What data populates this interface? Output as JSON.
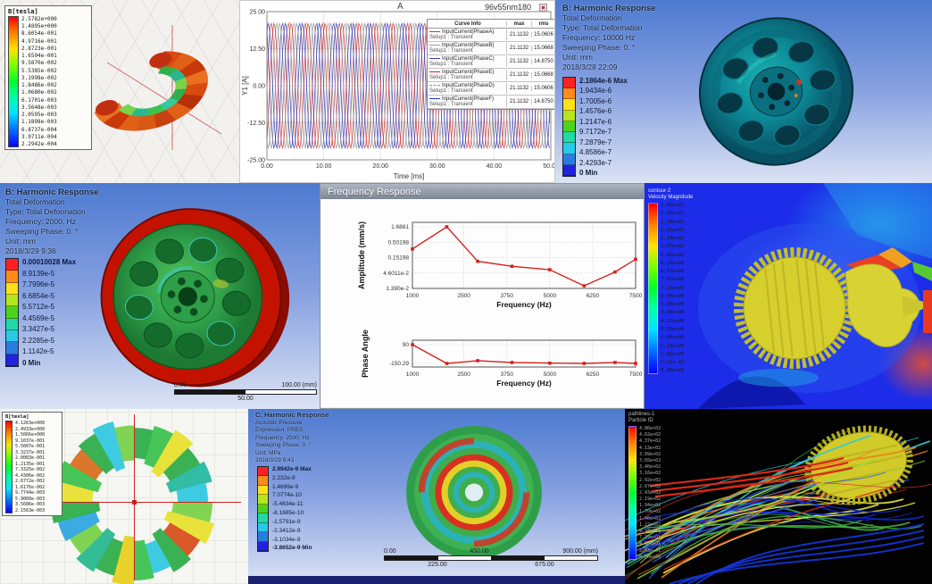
{
  "colors": {
    "ansys_bands": [
      "#ff2121",
      "#ff8c1a",
      "#ffe01a",
      "#b5e61d",
      "#4cd41c",
      "#21d8a6",
      "#29c9e8",
      "#2a7de0",
      "#2222dd"
    ],
    "accent_red": "#d42020",
    "ansys_bg_top": "#4d7ad0",
    "fluent_bg": "#1c2ce8"
  },
  "panels": {
    "maxwell_field_top": {
      "legend_title": "B[tesla]",
      "legend_values": [
        "2.5782e+000",
        "1.4895e+000",
        "8.6054e-001",
        "4.9716e-001",
        "2.8723e-001",
        "1.6594e-001",
        "9.5870e-002",
        "5.5385e-002",
        "3.1998e-002",
        "1.8486e-002",
        "1.0680e-002",
        "6.1701e-003",
        "3.5648e-003",
        "2.0595e-003",
        "1.1898e-003",
        "6.8737e-004",
        "3.9711e-004",
        "2.2942e-004"
      ]
    },
    "current_plot": {
      "corner_label": "A",
      "title": "96v55nm180"
    },
    "harmonic_10000": {
      "header": "B: Harmonic Response",
      "lines": [
        "Total Deformation",
        "Type: Total Deformation",
        "Frequency: 10000 Hz",
        "Sweeping Phase: 0. °",
        "Unit: mm",
        "2018/3/28 22:09"
      ],
      "scale_labels": [
        "2.1864e-6 Max",
        "1.9434e-6",
        "1.7005e-6",
        "1.4576e-6",
        "1.2147e-6",
        "9.7172e-7",
        "7.2879e-7",
        "4.8586e-7",
        "2.4293e-7",
        "0 Min"
      ]
    },
    "harmonic_2000": {
      "header": "B: Harmonic Response",
      "lines": [
        "Total Deformation",
        "Type: Total Deformation",
        "Frequency: 2000. Hz",
        "Sweeping Phase: 0. °",
        "Unit: mm",
        "2018/3/29 9:36"
      ],
      "scale_labels": [
        "0.00010028 Max",
        "8.9139e-5",
        "7.7996e-5",
        "6.6854e-5",
        "5.5712e-5",
        "4.4569e-5",
        "3.3427e-5",
        "2.2285e-5",
        "1.1142e-5",
        "0 Min"
      ],
      "ruler": {
        "top": [
          "0.00",
          "100.00 (mm)"
        ],
        "bottom": [
          "50.00"
        ],
        "segments": 2
      }
    },
    "freq_response": {
      "window_title": "Frequency Response"
    },
    "cfd_contour": {
      "legend_title_lines": [
        "contour-2",
        "Velocity Magnitude"
      ],
      "legend_values": [
        "1.42e+01",
        "1.35e+01",
        "1.28e+01",
        "1.21e+01",
        "1.14e+01",
        "1.07e+01",
        "9.96e+00",
        "9.24e+00",
        "8.53e+00",
        "7.82e+00",
        "7.11e+00",
        "6.40e+00",
        "5.69e+00",
        "4.98e+00",
        "4.27e+00",
        "3.56e+00",
        "2.84e+00",
        "2.13e+00",
        "1.42e+00",
        "7.11e-01",
        "0.00e+00"
      ]
    },
    "maxwell_field_bottom": {
      "legend_title": "B[tesla]",
      "legend_values": [
        "4.1263e+000",
        "2.4933e+000",
        "1.5066e+000",
        "9.1037e-001",
        "5.5007e-001",
        "3.3237e-001",
        "2.0083e-001",
        "1.2135e-001",
        "7.3325e-002",
        "4.4306e-002",
        "2.6772e-002",
        "1.6176e-002",
        "9.7744e-003",
        "5.9060e-003",
        "3.5686e-003",
        "2.1563e-003"
      ]
    },
    "acoustic": {
      "header": "C: Harmonic Response",
      "lines": [
        "Acoustic Pressure",
        "Expression: PRES",
        "Frequency: 2000. Hz",
        "Sweeping Phase: 0. °",
        "Unit: MPa",
        "2018/3/29 9:43"
      ],
      "scale_labels": [
        "2.9942e-9 Max",
        "2.232e-9",
        "1.4699e-9",
        "7.0774e-10",
        "-5.4634e-11",
        "-8.1685e-10",
        "-1.5791e-9",
        "-2.3412e-9",
        "-3.1034e-9",
        "-3.8652e-9 Min"
      ],
      "ruler": {
        "top": [
          "0.00",
          "450.00",
          "900.00 (mm)"
        ],
        "bottom": [
          "225.00",
          "675.00"
        ],
        "segments": 4
      }
    },
    "streamlines": {
      "legend_title_lines": [
        "pathlines-1",
        "Particle ID"
      ],
      "legend_values": [
        "4.86e+02",
        "4.62e+02",
        "4.37e+02",
        "4.13e+02",
        "3.89e+02",
        "3.65e+02",
        "3.40e+02",
        "3.16e+02",
        "2.92e+02",
        "2.67e+02",
        "2.43e+02",
        "2.19e+02",
        "1.94e+02",
        "1.70e+02",
        "1.46e+02",
        "1.22e+02",
        "9.72e+01",
        "7.29e+01",
        "4.86e+01",
        "2.43e+01",
        "0.00e+00"
      ]
    }
  },
  "chart_data": [
    {
      "id": "input-currents",
      "type": "line",
      "title": "96v55nm180",
      "xlabel": "Time [ms]",
      "ylabel": "Y1 [A]",
      "xlim": [
        0,
        50
      ],
      "ylim": [
        -25,
        25
      ],
      "x_ticks": [
        "0.00",
        "10.00",
        "20.00",
        "30.00",
        "40.00",
        "50.00"
      ],
      "y_ticks": [
        "25.00",
        "12.50",
        "0.00",
        "-12.50",
        "-25.00"
      ],
      "amplitude": 21.1132,
      "period_ms": 3.0,
      "legend_headers": [
        "Curve Info",
        "max",
        "rms"
      ],
      "series": [
        {
          "name": "InputCurrent(PhaseA)",
          "setup": "Setup1 : Transient",
          "max": "21.1132",
          "rms": "15.0606",
          "color": "#b84040",
          "phase_deg": 0
        },
        {
          "name": "InputCurrent(PhaseB)",
          "setup": "Setup1 : Transient",
          "max": "21.1132",
          "rms": "15.0668",
          "color": "#9a9a9a",
          "phase_deg": -120
        },
        {
          "name": "InputCurrent(PhaseC)",
          "setup": "Setup1 : Transient",
          "max": "21.1132",
          "rms": "14.8750",
          "color": "#3a3aa0",
          "phase_deg": -240
        },
        {
          "name": "InputCurrent(PhaseE)",
          "setup": "Setup1 : Transient",
          "max": "21.1132",
          "rms": "15.0668",
          "color": "#d42828",
          "phase_deg": -60
        },
        {
          "name": "InputCurrent(PhaseD)",
          "setup": "Setup1 : Transient",
          "max": "21.1132",
          "rms": "15.0606",
          "color": "#8f8f8f",
          "dash": true,
          "phase_deg": -180
        },
        {
          "name": "InputCurrent(PhaseF)",
          "setup": "Setup1 : Transient",
          "max": "21.1132",
          "rms": "14.8750",
          "color": "#2832c0",
          "phase_deg": -300
        }
      ]
    },
    {
      "id": "amplitude-response",
      "type": "line",
      "yscale": "log",
      "ylabel": "Amplitude (mm/s)",
      "xlabel": "Frequency (Hz)",
      "y_ticks": [
        "1.6881",
        "0.50198",
        "0.15198",
        "4.6011e-2",
        "1.390e-2"
      ],
      "x_ticks": [
        "1000",
        "2500",
        "3750",
        "5000",
        "6250",
        "7500"
      ],
      "x": [
        1000,
        2000,
        2900,
        3900,
        5000,
        6000,
        6900,
        7500
      ],
      "y": [
        0.3,
        1.6881,
        0.115,
        0.078,
        0.06,
        0.017,
        0.05,
        0.135
      ],
      "line_color": "#d42020"
    },
    {
      "id": "phase-response",
      "type": "line",
      "yscale": "linear",
      "ylabel": "Phase Angle",
      "xlabel": "Frequency (Hz)",
      "y_ticks": [
        "90",
        "-150.29"
      ],
      "x_ticks": [
        "1000",
        "2500",
        "3750",
        "5000",
        "6250",
        "7500"
      ],
      "x": [
        1000,
        2000,
        2900,
        3900,
        5000,
        6000,
        6900,
        7500
      ],
      "y": [
        90,
        -150.29,
        -115,
        -138,
        -146,
        -150,
        -138,
        -150
      ],
      "line_color": "#d42020"
    }
  ]
}
